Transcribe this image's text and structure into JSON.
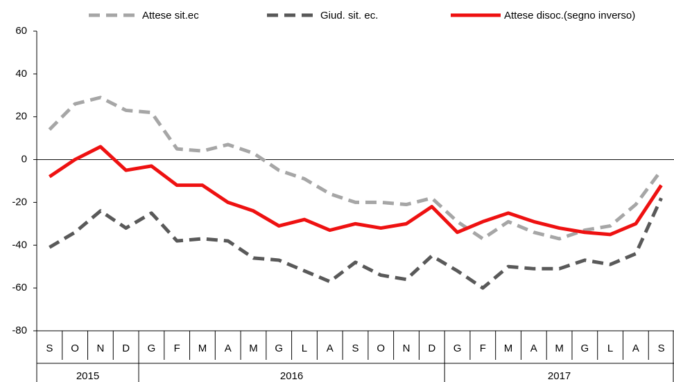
{
  "chart_data": {
    "type": "line",
    "category_groups": [
      {
        "label": "2015",
        "categories": [
          "S",
          "O",
          "N",
          "D"
        ]
      },
      {
        "label": "2016",
        "categories": [
          "G",
          "F",
          "M",
          "A",
          "M",
          "G",
          "L",
          "A",
          "S",
          "O",
          "N",
          "D"
        ]
      },
      {
        "label": "2017",
        "categories": [
          "G",
          "F",
          "M",
          "A",
          "M",
          "G",
          "L",
          "A",
          "S"
        ]
      }
    ],
    "series": [
      {
        "name": "Attese sit.ec",
        "color": "#a6a6a6",
        "dashed": true,
        "values": [
          14,
          26,
          29,
          23,
          22,
          5,
          4,
          7,
          3,
          -5,
          -9,
          -16,
          -20,
          -20,
          -21,
          -18,
          -29,
          -37,
          -29,
          -34,
          -37,
          -33,
          -31,
          -21,
          -5
        ]
      },
      {
        "name": "Giud. sit. ec.",
        "color": "#595959",
        "dashed": true,
        "values": [
          -41,
          -34,
          -24,
          -32,
          -25,
          -38,
          -37,
          -38,
          -46,
          -47,
          -52,
          -57,
          -48,
          -54,
          -56,
          -45,
          -52,
          -60,
          -50,
          -51,
          -51,
          -47,
          -49,
          -44,
          -18
        ]
      },
      {
        "name": "Attese disoc.(segno inverso)",
        "color": "#ee1111",
        "dashed": false,
        "values": [
          -8,
          0,
          6,
          -5,
          -3,
          -12,
          -12,
          -20,
          -24,
          -31,
          -28,
          -33,
          -30,
          -32,
          -30,
          -22,
          -34,
          -29,
          -25,
          -29,
          -32,
          -34,
          -35,
          -30,
          -12
        ]
      }
    ],
    "ylim": [
      -80,
      60
    ],
    "yticks": [
      -80,
      -60,
      -40,
      -20,
      0,
      20,
      40,
      60
    ],
    "grid": false,
    "legend": "top"
  }
}
